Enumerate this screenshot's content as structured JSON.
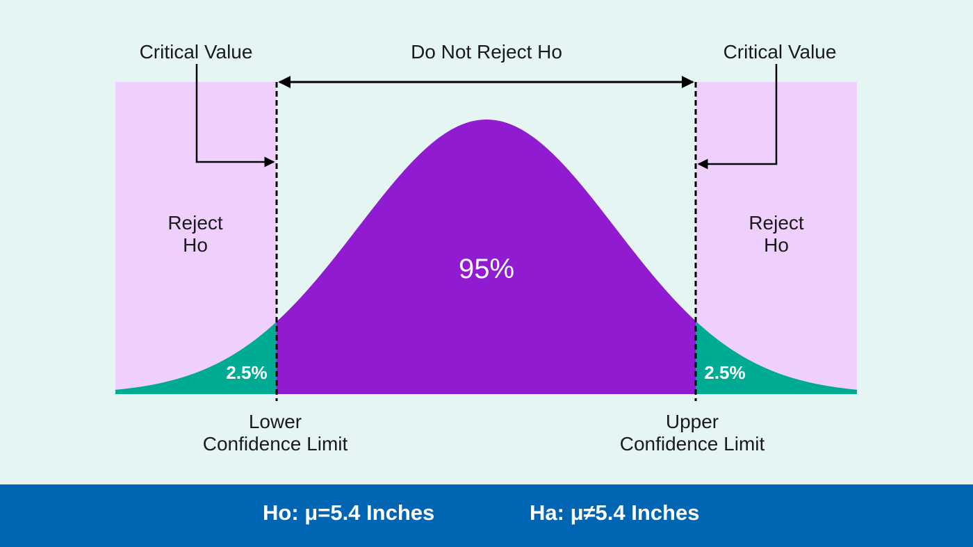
{
  "labels": {
    "critical_value_left": "Critical Value",
    "critical_value_right": "Critical Value",
    "do_not_reject": "Do Not Reject Ho",
    "reject_left": [
      "Reject",
      "Ho"
    ],
    "reject_right": [
      "Reject",
      "Ho"
    ],
    "center_percent": "95%",
    "tail_left_percent": "2.5%",
    "tail_right_percent": "2.5%",
    "lower_limit": [
      "Lower",
      "Confidence Limit"
    ],
    "upper_limit": [
      "Upper",
      "Confidence Limit"
    ]
  },
  "footer": {
    "null_hypothesis": "Ho: μ=5.4 Inches",
    "alt_hypothesis": "Ha: μ≠5.4 Inches"
  },
  "colors": {
    "background": "#e4f5f3",
    "reject_region": "#efd0fd",
    "center_area": "#901bd0",
    "tail_area": "#00ab94",
    "footer_bg": "#0065b3"
  }
}
